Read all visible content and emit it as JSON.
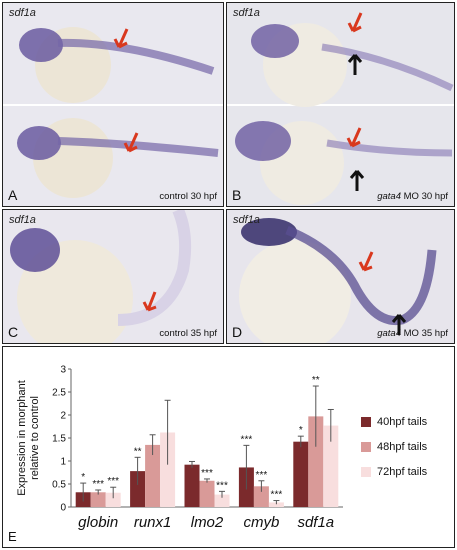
{
  "panels": [
    {
      "id": "A",
      "gene": "sdf1a",
      "condition_prefix": "",
      "condition_gene": "",
      "condition": "control 30 hpf"
    },
    {
      "id": "B",
      "gene": "sdf1a",
      "condition_prefix": "",
      "condition_gene": "gata4",
      "condition": "MO 30 hpf"
    },
    {
      "id": "C",
      "gene": "sdf1a",
      "condition_prefix": "",
      "condition_gene": "",
      "condition": "control 35 hpf"
    },
    {
      "id": "D",
      "gene": "sdf1a",
      "condition_prefix": "",
      "condition_gene": "gata4",
      "condition": "MO 35 hpf"
    }
  ],
  "panel_e_letter": "E",
  "colors": {
    "s40": "#7b2a2c",
    "s48": "#d99a98",
    "s72": "#f8dede",
    "arrow_red": "#d9381e",
    "arrow_black": "#111111",
    "embryo": "#6a5aa0",
    "yolk": "#efe8d8",
    "bg_photo": "#e8e6ee"
  },
  "chart_data": {
    "type": "bar",
    "categories": [
      "globin",
      "runx1",
      "lmo2",
      "cmyb",
      "sdf1a"
    ],
    "series": [
      {
        "name": "40hpf tails",
        "values": [
          0.32,
          0.78,
          0.92,
          0.86,
          1.42
        ],
        "errors": [
          0.2,
          0.3,
          0.07,
          0.48,
          0.12
        ]
      },
      {
        "name": "48hpf tails",
        "values": [
          0.32,
          1.35,
          0.57,
          0.45,
          1.97
        ],
        "errors": [
          0.05,
          0.22,
          0.04,
          0.12,
          0.66
        ]
      },
      {
        "name": "72hpf tails",
        "values": [
          0.31,
          1.62,
          0.27,
          0.1,
          1.77
        ],
        "errors": [
          0.12,
          0.7,
          0.07,
          0.04,
          0.35
        ]
      }
    ],
    "significance": [
      [
        "*",
        "**",
        "",
        "***",
        "*"
      ],
      [
        "***",
        "",
        "***",
        "***",
        "**"
      ],
      [
        "***",
        "",
        "***",
        "***",
        ""
      ]
    ],
    "yticks": [
      "0",
      "0.5",
      "1",
      "1.5",
      "2",
      "2.5",
      "3"
    ],
    "ylim": [
      0,
      3
    ],
    "ylabel": "Expression in morphant relative to control",
    "legend_position": "right"
  }
}
